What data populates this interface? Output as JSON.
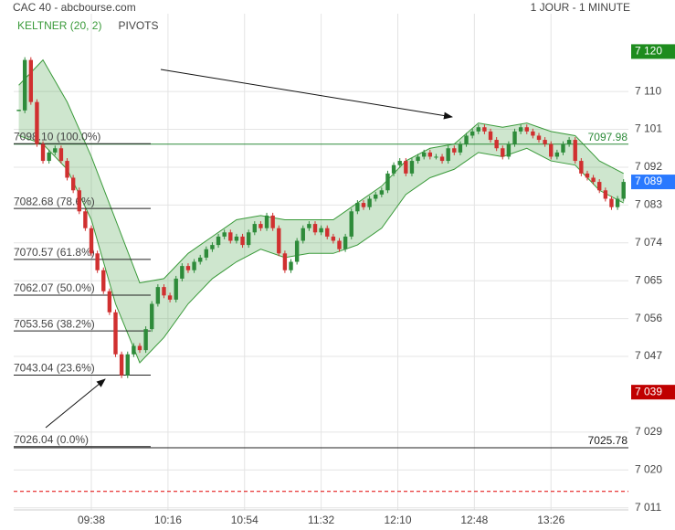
{
  "chart_data": {
    "type": "candlestick",
    "title": "CAC 40 - abcbourse.com",
    "subtitle": "1 JOUR - 1 MINUTE",
    "indicators": [
      {
        "name": "KELTNER (20, 2)",
        "color": "#3a9a3a"
      },
      {
        "name": "PIVOTS",
        "color": "#444444"
      }
    ],
    "close": [
      7106,
      7118,
      7108,
      7098,
      7094,
      7096,
      7097,
      7094,
      7090,
      7087,
      7082,
      7078,
      7072,
      7068,
      7063,
      7058,
      7048,
      7043,
      7048,
      7050,
      7049,
      7054,
      7060,
      7064,
      7062,
      7061,
      7066,
      7069,
      7068,
      7070,
      7071,
      7073,
      7074,
      7076,
      7077,
      7075,
      7076,
      7074,
      7077,
      7079,
      7078,
      7081,
      7078,
      7072,
      7068,
      7070,
      7075,
      7078,
      7079,
      7077,
      7078,
      7076,
      7075,
      7073,
      7076,
      7082,
      7084,
      7083,
      7085,
      7086,
      7087,
      7091,
      7093,
      7094,
      7091,
      7094,
      7095,
      7096,
      7095,
      7095,
      7094,
      7097,
      7096,
      7098,
      7100,
      7101,
      7102,
      7101,
      7099,
      7097,
      7095,
      7098,
      7101,
      7102,
      7101,
      7100,
      7099,
      7098,
      7095,
      7096,
      7098,
      7099,
      7094,
      7091,
      7090,
      7089,
      7087,
      7085,
      7083,
      7085,
      7089
    ],
    "up_color": "#2e8b3a",
    "down_color": "#d03030",
    "band": {
      "x": [
        0,
        4,
        8,
        12,
        16,
        20,
        24,
        28,
        32,
        36,
        40,
        44,
        48,
        52,
        56,
        60,
        64,
        68,
        72,
        76,
        80,
        84,
        88,
        92,
        96,
        100
      ],
      "upper": [
        7112,
        7118,
        7108,
        7095,
        7080,
        7065,
        7066,
        7072,
        7076,
        7080,
        7081,
        7080,
        7080,
        7080,
        7084,
        7088,
        7094,
        7097,
        7098,
        7103,
        7102,
        7103,
        7101,
        7100,
        7094,
        7091
      ],
      "lower": [
        7100,
        7098,
        7092,
        7080,
        7060,
        7046,
        7052,
        7060,
        7066,
        7070,
        7073,
        7071,
        7072,
        7072,
        7074,
        7078,
        7086,
        7090,
        7092,
        7096,
        7095,
        7097,
        7094,
        7093,
        7087,
        7084
      ],
      "color": "#3a9a3a"
    },
    "fib_levels": [
      {
        "value": 7098.1,
        "label": "7098.10  (100.0%)"
      },
      {
        "value": 7082.68,
        "label": "7082.68  (78.6%)"
      },
      {
        "value": 7070.57,
        "label": "7070.57  (61.8%)"
      },
      {
        "value": 7062.07,
        "label": "7062.07  (50.0%)"
      },
      {
        "value": 7053.56,
        "label": "7053.56  (38.2%)"
      },
      {
        "value": 7043.04,
        "label": "7043.04  (23.6%)"
      },
      {
        "value": 7026.04,
        "label": "7026.04  (0.0%)"
      }
    ],
    "levels": [
      {
        "value": 7097.98,
        "label": "7097.98",
        "color": "#2e8b3a"
      },
      {
        "value": 7025.78,
        "label": "7025.78",
        "color": "#222222"
      }
    ],
    "price_tags": [
      {
        "value": 7120,
        "label": "7 120",
        "color": "#1e8c1e"
      },
      {
        "value": 7089,
        "label": "7 089",
        "color": "#2979ff"
      },
      {
        "value": 7039,
        "label": "7 039",
        "color": "#c00000"
      }
    ],
    "reference_line": {
      "value": 7015.4,
      "color": "#e00000"
    },
    "xlim": [
      -0.84,
      100.8
    ],
    "ylim": [
      7011,
      7129
    ],
    "yticks": [
      {
        "value": 7110.5,
        "label": "7 110"
      },
      {
        "value": 7101.5,
        "label": "7 101"
      },
      {
        "value": 7092.5,
        "label": "7 092"
      },
      {
        "value": 7083.5,
        "label": "7 083"
      },
      {
        "value": 7074.5,
        "label": "7 074"
      },
      {
        "value": 7065.5,
        "label": "7 065"
      },
      {
        "value": 7056.5,
        "label": "7 056"
      },
      {
        "value": 7047.5,
        "label": "7 047"
      },
      {
        "value": 7029.5,
        "label": "7 029"
      },
      {
        "value": 7020.5,
        "label": "7 020"
      },
      {
        "value": 7011.5,
        "label": "7 011"
      }
    ],
    "xticks": [
      {
        "value": 12,
        "label": "09:38"
      },
      {
        "value": 24.67,
        "label": "10:16"
      },
      {
        "value": 37.33,
        "label": "10:54"
      },
      {
        "value": 50,
        "label": "11:32"
      },
      {
        "value": 62.67,
        "label": "12:10"
      },
      {
        "value": 75.33,
        "label": "12:48"
      },
      {
        "value": 88,
        "label": "13:26"
      }
    ],
    "grid": true
  }
}
